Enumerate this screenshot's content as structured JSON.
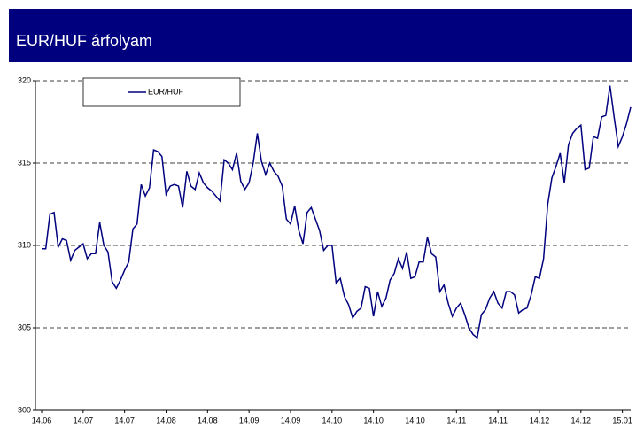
{
  "chart_data": {
    "type": "line",
    "title": "EUR/HUF árfolyam",
    "categories": [
      "14.06",
      null,
      null,
      null,
      null,
      null,
      null,
      null,
      null,
      null,
      "14.07",
      null,
      null,
      null,
      null,
      null,
      null,
      null,
      null,
      null,
      "14.07",
      null,
      null,
      null,
      null,
      null,
      null,
      null,
      null,
      null,
      "14.08",
      null,
      null,
      null,
      null,
      null,
      null,
      null,
      null,
      null,
      "14.08",
      null,
      null,
      null,
      null,
      null,
      null,
      null,
      null,
      null,
      "14.09",
      null,
      null,
      null,
      null,
      null,
      null,
      null,
      null,
      null,
      "14.09",
      null,
      null,
      null,
      null,
      null,
      null,
      null,
      null,
      null,
      "14.10",
      null,
      null,
      null,
      null,
      null,
      null,
      null,
      null,
      null,
      "14.10",
      null,
      null,
      null,
      null,
      null,
      null,
      null,
      null,
      null,
      "14.10",
      null,
      null,
      null,
      null,
      null,
      null,
      null,
      null,
      null,
      "14.11",
      null,
      null,
      null,
      null,
      null,
      null,
      null,
      null,
      null,
      "14.11",
      null,
      null,
      null,
      null,
      null,
      null,
      null,
      null,
      null,
      "14.12",
      null,
      null,
      null,
      null,
      null,
      null,
      null,
      null,
      null,
      "14.12",
      null,
      null,
      null,
      null,
      null,
      null,
      null,
      null,
      null,
      "15.01",
      null,
      null
    ],
    "series": [
      {
        "name": "EUR/HUF",
        "color": "#00007f",
        "values": [
          309.8,
          309.8,
          311.9,
          312.0,
          309.9,
          310.4,
          310.3,
          309.1,
          309.7,
          309.9,
          310.1,
          309.2,
          309.5,
          309.5,
          311.4,
          310.0,
          309.6,
          307.8,
          307.4,
          307.9,
          308.5,
          309.0,
          311.0,
          311.3,
          313.7,
          313.0,
          313.5,
          315.8,
          315.7,
          315.4,
          313.1,
          313.6,
          313.7,
          313.6,
          312.3,
          314.5,
          313.6,
          313.4,
          314.4,
          313.8,
          313.5,
          313.3,
          313.0,
          312.7,
          315.2,
          315.0,
          314.6,
          315.6,
          313.9,
          313.4,
          313.8,
          315.0,
          316.8,
          315.1,
          314.3,
          315.0,
          314.5,
          314.2,
          313.6,
          311.6,
          311.3,
          312.4,
          310.9,
          310.1,
          312.0,
          312.3,
          311.6,
          310.9,
          309.7,
          310.0,
          310.0,
          307.7,
          308.0,
          306.9,
          306.4,
          305.6,
          306.0,
          306.2,
          307.5,
          307.4,
          305.7,
          307.2,
          306.3,
          306.8,
          307.9,
          308.3,
          309.2,
          308.6,
          309.6,
          308.0,
          308.1,
          309.0,
          309.0,
          310.5,
          309.5,
          309.3,
          307.2,
          307.6,
          306.5,
          305.7,
          306.2,
          306.5,
          305.8,
          305.0,
          304.6,
          304.4,
          305.8,
          306.1,
          306.8,
          307.2,
          306.5,
          306.2,
          307.2,
          307.2,
          307.0,
          305.9,
          306.1,
          306.2,
          307.0,
          308.1,
          308.0,
          309.2,
          312.5,
          314.1,
          314.8,
          315.6,
          313.8,
          316.1,
          316.8,
          317.1,
          317.3,
          314.6,
          314.7,
          316.6,
          316.5,
          317.8,
          317.9,
          319.7,
          317.8,
          316.0,
          316.6,
          317.4,
          318.4
        ]
      }
    ],
    "ylim": [
      300,
      320
    ],
    "yticks": [
      300,
      305,
      310,
      315,
      320
    ],
    "grid": true,
    "legend": "upper left",
    "title_bar_color": "#00007f"
  }
}
